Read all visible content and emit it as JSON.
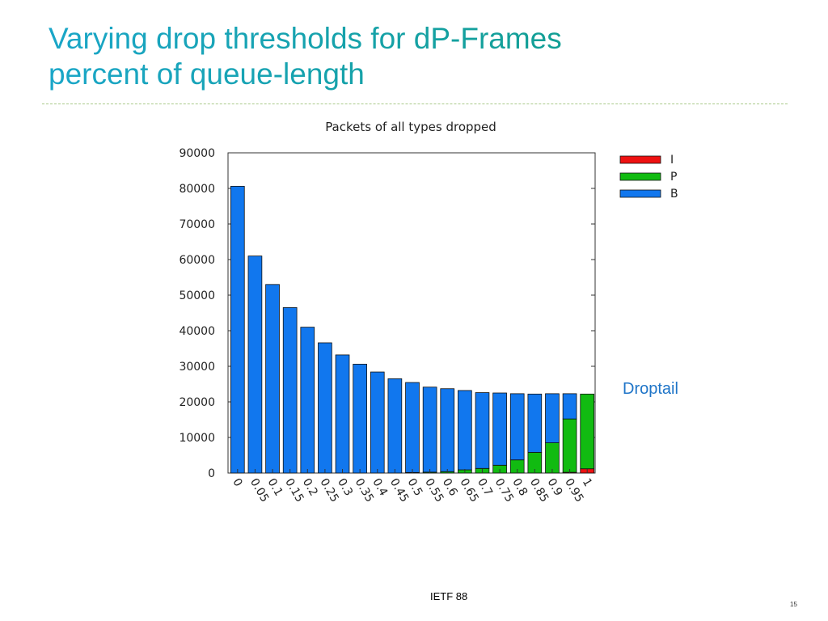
{
  "slide": {
    "title_line1": "Varying drop thresholds for dP-Frames",
    "title_line2": "percent of queue-length",
    "annotation": "Droptail",
    "footer": "IETF 88",
    "page_number": "15"
  },
  "chart_data": {
    "type": "bar",
    "stacked": true,
    "title": "Packets of all types dropped",
    "xlabel": "",
    "ylabel": "",
    "ylim": [
      0,
      90000
    ],
    "yticks": [
      0,
      10000,
      20000,
      30000,
      40000,
      50000,
      60000,
      70000,
      80000,
      90000
    ],
    "categories": [
      "0",
      "0.05",
      "0.1",
      "0.15",
      "0.2",
      "0.25",
      "0.3",
      "0.35",
      "0.4",
      "0.45",
      "0.5",
      "0.55",
      "0.6",
      "0.65",
      "0.7",
      "0.75",
      "0.8",
      "0.85",
      "0.9",
      "0.95",
      "1"
    ],
    "legend_position": "top-right, outside plot",
    "grid": false,
    "series": [
      {
        "name": "I",
        "color": "#ee1111",
        "values": [
          0,
          0,
          0,
          0,
          0,
          0,
          0,
          0,
          0,
          0,
          0,
          0,
          0,
          0,
          0,
          0,
          0,
          0,
          0,
          200,
          1200
        ]
      },
      {
        "name": "P",
        "color": "#11bb11",
        "values": [
          0,
          0,
          0,
          0,
          0,
          0,
          0,
          0,
          0,
          0,
          150,
          250,
          400,
          900,
          1300,
          2200,
          3700,
          5800,
          8500,
          15000,
          21000
        ]
      },
      {
        "name": "B",
        "color": "#1177ee",
        "values": [
          80600,
          61000,
          53000,
          46500,
          41000,
          36600,
          33200,
          30600,
          28400,
          26500,
          25300,
          23900,
          23300,
          22300,
          21300,
          20300,
          18600,
          16400,
          13800,
          7100,
          0
        ]
      }
    ],
    "totals": [
      80600,
      61000,
      53000,
      46500,
      41000,
      36600,
      33200,
      30600,
      28400,
      26500,
      25450,
      24150,
      23700,
      23200,
      22600,
      22500,
      22300,
      22200,
      22300,
      22300,
      22200
    ]
  }
}
